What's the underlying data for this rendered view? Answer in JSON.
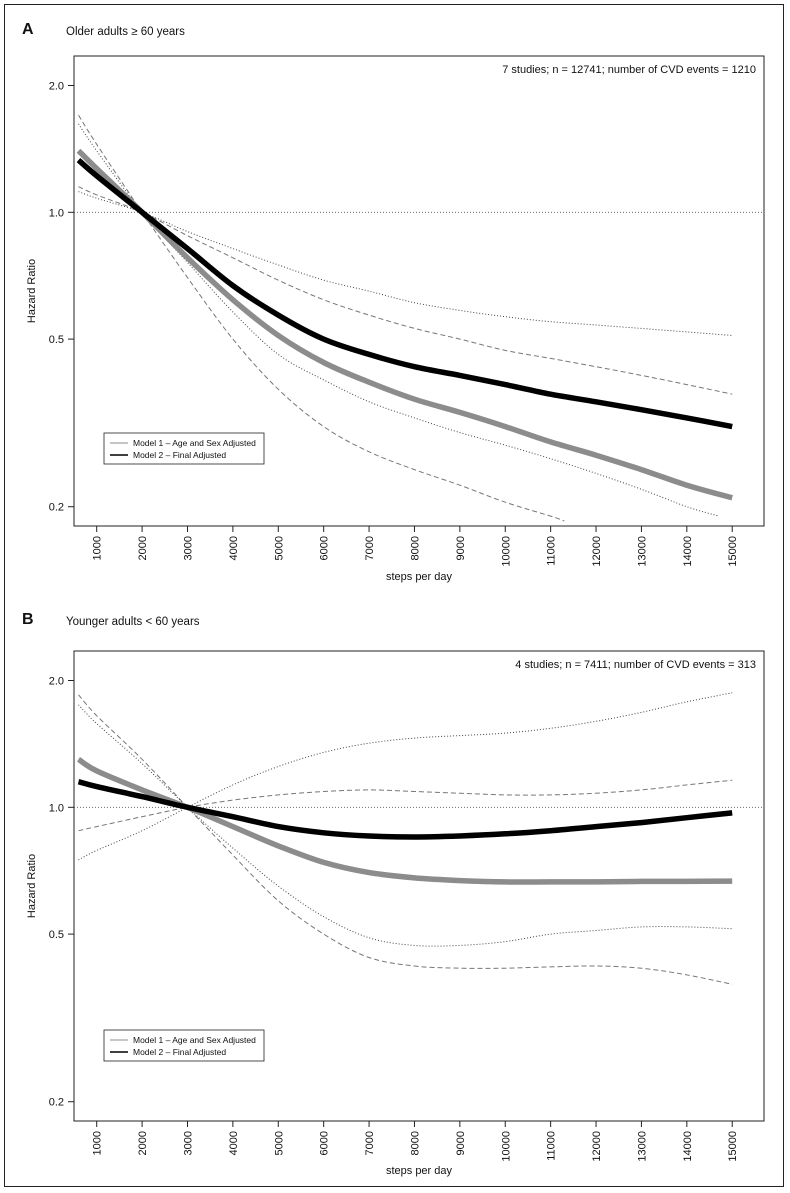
{
  "colors": {
    "model1": "#8c8c8c",
    "model2": "#000000",
    "ci": "#777777"
  },
  "chart_data": [
    {
      "type": "line",
      "panel_letter": "A",
      "subtitle": "Older adults ≥ 60 years",
      "annotation": "7 studies; n = 12741; number of CVD events = 1210",
      "xlabel": "steps per day",
      "ylabel": "Hazard Ratio",
      "log_y": true,
      "xlim": [
        500,
        15700
      ],
      "ylim": [
        0.18,
        2.35
      ],
      "xticks": [
        1000,
        2000,
        3000,
        4000,
        5000,
        6000,
        7000,
        8000,
        9000,
        10000,
        11000,
        12000,
        13000,
        14000,
        15000
      ],
      "yticks": [
        2.0,
        1.0,
        0.5,
        0.2
      ],
      "yticklabels": [
        "2.0",
        "1.0",
        "0.5",
        "0.2"
      ],
      "reference_line": 1.0,
      "legend": [
        "Model 1 – Age and Sex Adjusted",
        "Model 2 – Final Adjusted"
      ],
      "series": [
        {
          "name": "Model 1 – Age and Sex Adjusted",
          "style": "model1",
          "x": [
            600,
            1000,
            2000,
            3000,
            4000,
            5000,
            6000,
            7000,
            8000,
            9000,
            10000,
            11000,
            12000,
            13000,
            14000,
            15000
          ],
          "y": [
            1.4,
            1.27,
            1.0,
            0.78,
            0.62,
            0.51,
            0.44,
            0.395,
            0.36,
            0.335,
            0.31,
            0.285,
            0.265,
            0.245,
            0.225,
            0.21
          ]
        },
        {
          "name": "Model 2 – Final Adjusted",
          "style": "model2",
          "x": [
            600,
            1000,
            2000,
            3000,
            4000,
            5000,
            6000,
            7000,
            8000,
            9000,
            10000,
            11000,
            12000,
            13000,
            14000,
            15000
          ],
          "y": [
            1.33,
            1.22,
            1.0,
            0.82,
            0.67,
            0.57,
            0.5,
            0.46,
            0.43,
            0.41,
            0.39,
            0.37,
            0.355,
            0.34,
            0.325,
            0.31
          ]
        },
        {
          "style": "ci-dashed",
          "x": [
            600,
            1000,
            2000,
            3000,
            4000,
            5000,
            6000,
            7000,
            8000,
            9000,
            10000,
            11000,
            11300
          ],
          "y": [
            1.7,
            1.45,
            1.0,
            0.7,
            0.5,
            0.38,
            0.31,
            0.27,
            0.245,
            0.225,
            0.205,
            0.19,
            0.185
          ]
        },
        {
          "style": "ci-dashed",
          "x": [
            600,
            1000,
            2000,
            3000,
            4000,
            5000,
            6000,
            7000,
            8000,
            9000,
            10000,
            11000,
            12000,
            13000,
            14000,
            15000
          ],
          "y": [
            1.15,
            1.1,
            1.0,
            0.88,
            0.78,
            0.69,
            0.62,
            0.57,
            0.53,
            0.5,
            0.47,
            0.45,
            0.43,
            0.41,
            0.39,
            0.37
          ]
        },
        {
          "style": "ci-dotted",
          "x": [
            600,
            1000,
            2000,
            3000,
            4000,
            5000,
            6000,
            7000,
            8000,
            9000,
            10000,
            11000,
            12000,
            13000,
            14000,
            14700
          ],
          "y": [
            1.62,
            1.4,
            1.0,
            0.76,
            0.58,
            0.46,
            0.4,
            0.355,
            0.325,
            0.3,
            0.28,
            0.26,
            0.24,
            0.22,
            0.2,
            0.19
          ]
        },
        {
          "style": "ci-dotted",
          "x": [
            600,
            1000,
            2000,
            3000,
            4000,
            5000,
            6000,
            7000,
            8000,
            9000,
            10000,
            11000,
            12000,
            13000,
            14000,
            15000
          ],
          "y": [
            1.12,
            1.08,
            1.0,
            0.9,
            0.82,
            0.75,
            0.69,
            0.65,
            0.61,
            0.585,
            0.565,
            0.55,
            0.54,
            0.53,
            0.52,
            0.51
          ]
        }
      ]
    },
    {
      "type": "line",
      "panel_letter": "B",
      "subtitle": "Younger adults < 60 years",
      "annotation": "4 studies; n = 7411; number of CVD events = 313",
      "xlabel": "steps per day",
      "ylabel": "Hazard Ratio",
      "log_y": true,
      "xlim": [
        500,
        15700
      ],
      "ylim": [
        0.18,
        2.35
      ],
      "xticks": [
        1000,
        2000,
        3000,
        4000,
        5000,
        6000,
        7000,
        8000,
        9000,
        10000,
        11000,
        12000,
        13000,
        14000,
        15000
      ],
      "yticks": [
        2.0,
        1.0,
        0.5,
        0.2
      ],
      "yticklabels": [
        "2.0",
        "1.0",
        "0.5",
        "0.2"
      ],
      "reference_line": 1.0,
      "legend": [
        "Model 1 – Age and Sex Adjusted",
        "Model 2 – Final Adjusted"
      ],
      "series": [
        {
          "name": "Model 1 – Age and Sex Adjusted",
          "style": "model1",
          "x": [
            600,
            1000,
            2000,
            3000,
            4000,
            5000,
            6000,
            7000,
            8000,
            9000,
            10000,
            11000,
            12000,
            13000,
            14000,
            15000
          ],
          "y": [
            1.3,
            1.22,
            1.1,
            1.0,
            0.9,
            0.81,
            0.74,
            0.7,
            0.68,
            0.67,
            0.665,
            0.665,
            0.665,
            0.667,
            0.667,
            0.668
          ]
        },
        {
          "name": "Model 2 – Final Adjusted",
          "style": "model2",
          "x": [
            600,
            1000,
            2000,
            3000,
            4000,
            5000,
            6000,
            7000,
            8000,
            9000,
            10000,
            11000,
            12000,
            13000,
            14000,
            15000
          ],
          "y": [
            1.15,
            1.12,
            1.06,
            1.0,
            0.95,
            0.9,
            0.87,
            0.855,
            0.85,
            0.855,
            0.865,
            0.88,
            0.9,
            0.92,
            0.945,
            0.97
          ]
        },
        {
          "style": "ci-dashed",
          "x": [
            600,
            1000,
            2000,
            3000,
            4000,
            5000,
            6000,
            7000,
            8000,
            9000,
            10000,
            11000,
            12000,
            13000,
            14000,
            15000
          ],
          "y": [
            1.85,
            1.65,
            1.3,
            1.0,
            0.77,
            0.6,
            0.5,
            0.44,
            0.42,
            0.415,
            0.415,
            0.418,
            0.42,
            0.415,
            0.4,
            0.38
          ]
        },
        {
          "style": "ci-dashed",
          "x": [
            600,
            1000,
            2000,
            3000,
            4000,
            5000,
            6000,
            7000,
            8000,
            9000,
            10000,
            11000,
            12000,
            13000,
            14000,
            15000
          ],
          "y": [
            0.88,
            0.9,
            0.95,
            1.0,
            1.04,
            1.07,
            1.09,
            1.1,
            1.09,
            1.08,
            1.07,
            1.07,
            1.08,
            1.1,
            1.13,
            1.16
          ]
        },
        {
          "style": "ci-dotted",
          "x": [
            600,
            1000,
            2000,
            3000,
            4000,
            5000,
            6000,
            7000,
            8000,
            9000,
            10000,
            11000,
            12000,
            13000,
            14000,
            15000
          ],
          "y": [
            1.75,
            1.58,
            1.27,
            1.0,
            0.8,
            0.65,
            0.55,
            0.49,
            0.47,
            0.47,
            0.48,
            0.5,
            0.51,
            0.52,
            0.52,
            0.515
          ]
        },
        {
          "style": "ci-dotted",
          "x": [
            600,
            1000,
            2000,
            3000,
            4000,
            5000,
            6000,
            7000,
            8000,
            9000,
            10000,
            11000,
            12000,
            13000,
            14000,
            15000
          ],
          "y": [
            0.75,
            0.79,
            0.88,
            1.0,
            1.13,
            1.25,
            1.35,
            1.42,
            1.46,
            1.48,
            1.5,
            1.54,
            1.6,
            1.68,
            1.78,
            1.87
          ]
        }
      ]
    }
  ]
}
